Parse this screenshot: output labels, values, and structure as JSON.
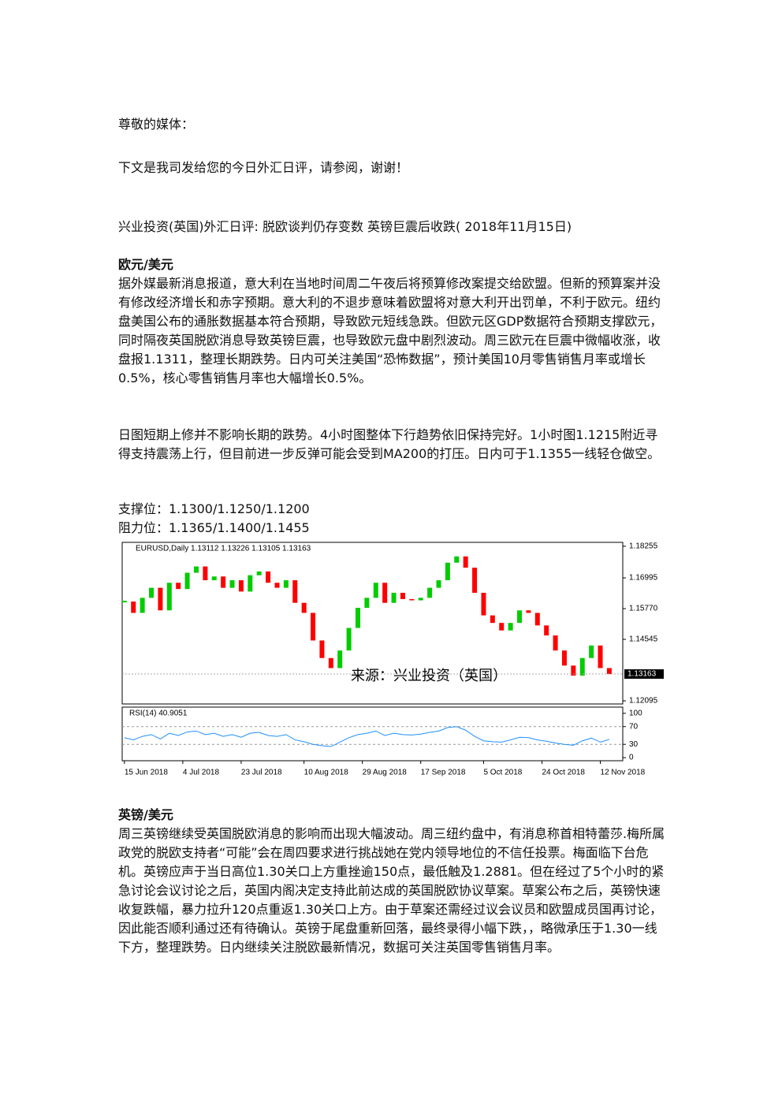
{
  "greeting": "尊敬的媒体：",
  "intro": "下文是我司发给您的今日外汇日评，请参阅，谢谢！",
  "headline": "兴业投资(英国)外汇日评: 脱欧谈判仍存变数 英镑巨震后收跌( 2018年11月15日)",
  "eur": {
    "heading": "欧元/美元",
    "paragraphs": [
      "据外媒最新消息报道，意大利在当地时间周二午夜后将预算修改案提交给欧盟。但新的预算案并没有修改经济增长和赤字预期。意大利的不退步意味着欧盟将对意大利开出罚单，不利于欧元。纽约盘美国公布的通胀数据基本符合预期，导致欧元短线急跌。但欧元区GDP数据符合预期支撑欧元，同时隔夜英国脱欧消息导致英镑巨震，也导致欧元盘中剧烈波动。周三欧元在巨震中微幅收涨，收盘报1.1311，整理长期跌势。日内可关注美国“恐怖数据”，预计美国10月零售销售月率或增长0.5%，核心零售销售月率也大幅增长0.5%。",
      "日图短期上修并不影响长期的跌势。4小时图整体下行趋势依旧保持完好。1小时图1.1215附近寻得支持震荡上行，但目前进一步反弹可能会受到MA200的打压。日内可于1.1355一线轻仓做空。"
    ],
    "support": "支撑位：1.1300/1.1250/1.1200",
    "resistance": "阻力位：1.1365/1.1400/1.1455"
  },
  "chart_data": {
    "type": "candlestick",
    "title": "EURUSD,Daily  1.13112 1.13226 1.13105 1.13163",
    "watermark": "来源：兴业投资（英国）",
    "x": [
      0,
      2,
      4,
      6,
      8,
      10,
      12,
      14,
      16,
      18,
      20,
      22,
      24,
      26,
      28,
      30,
      32,
      34,
      36,
      38,
      40,
      42,
      44,
      46,
      48,
      50,
      52,
      54,
      56,
      58,
      60,
      62,
      64,
      66,
      68,
      70,
      72,
      74,
      76,
      78,
      80,
      82,
      84,
      86,
      88,
      90,
      92,
      94,
      96,
      98,
      100,
      102,
      104,
      106,
      108
    ],
    "close": [
      1.1605,
      1.156,
      1.162,
      1.166,
      1.157,
      1.168,
      1.1655,
      1.172,
      1.1745,
      1.169,
      1.1705,
      1.166,
      1.169,
      1.1645,
      1.171,
      1.1725,
      1.168,
      1.166,
      1.169,
      1.16,
      1.156,
      1.145,
      1.138,
      1.134,
      1.141,
      1.15,
      1.158,
      1.162,
      1.168,
      1.16,
      1.164,
      1.1615,
      1.161,
      1.162,
      1.166,
      1.169,
      1.176,
      1.1785,
      1.174,
      1.164,
      1.155,
      1.152,
      1.149,
      1.152,
      1.157,
      1.156,
      1.151,
      1.147,
      1.141,
      1.135,
      1.131,
      1.138,
      1.143,
      1.134,
      1.1316
    ],
    "up_color": "#00cc00",
    "down_color": "#ff0000",
    "last_price": 1.13163,
    "xlim": [
      -0.5,
      111
    ],
    "xticks": [
      {
        "value": 0,
        "label": "15 Jun 2018"
      },
      {
        "value": 13,
        "label": "4 Jul 2018"
      },
      {
        "value": 26,
        "label": "23 Jul 2018"
      },
      {
        "value": 40,
        "label": "10 Aug 2018"
      },
      {
        "value": 53,
        "label": "29 Aug 2018"
      },
      {
        "value": 66,
        "label": "17 Sep 2018"
      },
      {
        "value": 80,
        "label": "5 Oct 2018"
      },
      {
        "value": 93,
        "label": "24 Oct 2018"
      },
      {
        "value": 106,
        "label": "12 Nov 2018"
      }
    ],
    "ylim": [
      1.1197,
      1.1841
    ],
    "yticks": [
      1.18255,
      1.16995,
      {
        "value": 1.1577,
        "label": "1.15770"
      },
      1.14545,
      1.12095
    ],
    "rsi": {
      "title": "RSI(14) 40.9051",
      "color": "#1e90ff",
      "values": [
        45,
        40,
        48,
        52,
        42,
        55,
        50,
        58,
        60,
        52,
        55,
        48,
        52,
        46,
        55,
        57,
        50,
        48,
        52,
        40,
        36,
        30,
        27,
        25,
        35,
        45,
        52,
        55,
        60,
        50,
        55,
        52,
        51,
        53,
        57,
        60,
        68,
        70,
        62,
        48,
        38,
        36,
        35,
        40,
        46,
        45,
        40,
        37,
        33,
        30,
        28,
        38,
        44,
        35,
        41
      ],
      "ylim": [
        -7,
        114
      ],
      "yticks": [
        100,
        70,
        30,
        0
      ]
    }
  },
  "gbp": {
    "heading": "英镑/美元",
    "paragraphs": [
      "周三英镑继续受英国脱欧消息的影响而出现大幅波动。周三纽约盘中，有消息称首相特蕾莎.梅所属政党的脱欧支持者“可能”会在周四要求进行挑战她在党内领导地位的不信任投票。梅面临下台危机。英镑应声于当日高位1.30关口上方重挫逾150点，最低触及1.2881。但在经过了5个小时的紧急讨论会议讨论之后，英国内阁决定支持此前达成的英国脱欧协议草案。草案公布之后，英镑快速收复跌幅，暴力拉升120点重返1.30关口上方。由于草案还需经过议会议员和欧盟成员国再讨论，因此能否顺利通过还有待确认。英镑于尾盘重新回落，最终录得小幅下跌，，略微承压于1.30一线下方，整理跌势。日内继续关注脱欧最新情况，数据可关注英国零售销售月率。"
    ]
  }
}
